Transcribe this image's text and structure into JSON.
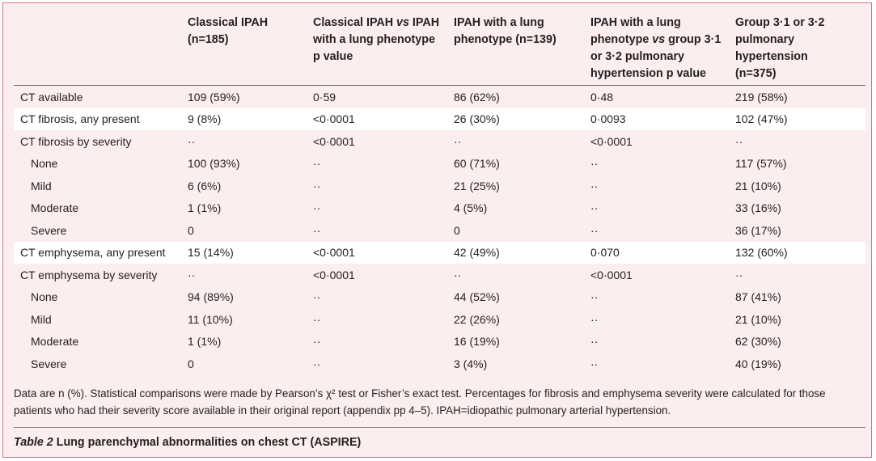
{
  "header": [
    [
      "Classical IPAH",
      "(n=185)"
    ],
    [
      [
        "Classical IPAH ",
        "vs",
        " IPAH"
      ],
      "with a lung phenotype",
      "p value"
    ],
    [
      "IPAH with a lung",
      "phenotype (n=139)"
    ],
    [
      "IPAH with a lung",
      [
        "phenotype ",
        "vs",
        " group 3·1"
      ],
      "or 3·2 pulmonary",
      "hypertension p value"
    ],
    [
      "Group 3·1 or 3·2",
      "pulmonary",
      "hypertension",
      "(n=375)"
    ]
  ],
  "rows": [
    [
      "CT available",
      "109 (59%)",
      "0·59",
      "86 (62%)",
      "0·48",
      "219 (58%)"
    ],
    [
      "CT fibrosis, any present",
      "9 (8%)",
      "<0·0001",
      "26 (30%)",
      "0·0093",
      "102 (47%)"
    ],
    [
      "CT fibrosis by severity",
      "··",
      "<0·0001",
      "··",
      "<0·0001",
      "··"
    ],
    [
      "None",
      "100 (93%)",
      "··",
      "60 (71%)",
      "··",
      "117 (57%)"
    ],
    [
      "Mild",
      "6 (6%)",
      "··",
      "21 (25%)",
      "··",
      "21 (10%)"
    ],
    [
      "Moderate",
      "1 (1%)",
      "··",
      "4 (5%)",
      "··",
      "33 (16%)"
    ],
    [
      "Severe",
      "0",
      "··",
      "0",
      "··",
      "36 (17%)"
    ],
    [
      "CT emphysema, any present",
      "15 (14%)",
      "<0·0001",
      "42 (49%)",
      "0·070",
      "132 (60%)"
    ],
    [
      "CT emphysema by severity",
      "··",
      "<0·0001",
      "··",
      "<0·0001",
      "··"
    ],
    [
      "None",
      "94 (89%)",
      "··",
      "44 (52%)",
      "··",
      "87 (41%)"
    ],
    [
      "Mild",
      "11 (10%)",
      "··",
      "22 (26%)",
      "··",
      "21 (10%)"
    ],
    [
      "Moderate",
      "1 (1%)",
      "··",
      "16 (19%)",
      "··",
      "62 (30%)"
    ],
    [
      "Severe",
      "0",
      "··",
      "3 (4%)",
      "··",
      "40 (19%)"
    ]
  ],
  "note": "Data are n (%). Statistical comparisons were made by Pearson’s χ² test or Fisher’s exact test. Percentages for fibrosis and emphysema severity were calculated for those patients who had their severity score available in their original report (appendix pp 4–5). IPAH=idiopathic pulmonary arterial hypertension.",
  "caption": {
    "label": "Table 2",
    "text": "Lung parenchymal abnormalities on chest CT (ASPIRE)"
  }
}
